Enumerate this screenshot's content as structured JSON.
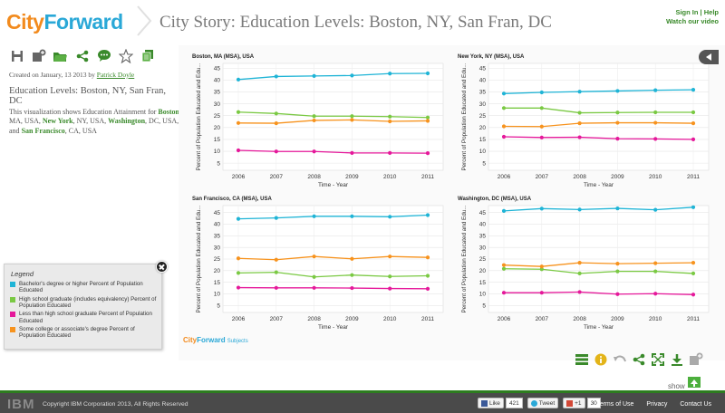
{
  "header": {
    "logo_city": "City",
    "logo_forward": "Forward",
    "title": "City Story:  Education Levels: Boston, NY, San Fran, DC",
    "sign_in": "Sign In",
    "separator": "|",
    "help": "Help",
    "watch_video": "Watch our video"
  },
  "toolbar": {
    "icons": [
      "save-icon",
      "add-icon",
      "open-folder-icon",
      "share-icon",
      "comment-icon",
      "favorite-star-icon",
      "copy-icon"
    ]
  },
  "story": {
    "created_prefix": "Created on January, 13 2013 by",
    "author": "Patrick Doyle",
    "title": "Education Levels: Boston, NY, San Fran, DC",
    "desc_intro": "This visualization shows Education Attainment for",
    "boston": "Boston",
    "boston_rest": ", MA, USA,",
    "newyork": "New York",
    "newyork_rest": ", NY, USA,",
    "washington": "Washington",
    "washington_rest": ", DC, USA, and",
    "sanfran": "San Francisco",
    "sanfran_rest": ", CA, USA"
  },
  "colors": {
    "bachelor": "#1fb4d6",
    "highschool": "#7ac943",
    "lessthan": "#e5189a",
    "somecollege": "#f7931e",
    "green_text": "#3a8a2b"
  },
  "chart_data": [
    {
      "type": "line",
      "title": "Boston, MA (MSA), USA",
      "xlabel": "Time - Year",
      "ylabel": "Percent of Population Educated and Edu...",
      "x": [
        2006,
        2007,
        2008,
        2009,
        2010,
        2011
      ],
      "yticks": [
        5,
        10,
        15,
        20,
        25,
        30,
        35,
        40,
        45
      ],
      "ylim": [
        2,
        47
      ],
      "grid": true,
      "series": [
        {
          "name": "Bachelor's degree or higher Percent of Population Educated",
          "color": "#1fb4d6",
          "values": [
            40.2,
            41.5,
            41.7,
            41.9,
            42.7,
            42.8
          ]
        },
        {
          "name": "High school graduate (includes equivalency) Percent of Population Educated",
          "color": "#7ac943",
          "values": [
            26.5,
            25.9,
            24.8,
            24.8,
            24.6,
            24.2
          ]
        },
        {
          "name": "Some college or associate's degree Percent of Population Educated",
          "color": "#f7931e",
          "values": [
            21.9,
            21.8,
            23.0,
            23.2,
            22.6,
            22.8
          ]
        },
        {
          "name": "Less than high school graduate Percent of Population Educated",
          "color": "#e5189a",
          "values": [
            10.4,
            9.9,
            9.9,
            9.3,
            9.3,
            9.2
          ]
        }
      ]
    },
    {
      "type": "line",
      "title": "New York, NY (MSA), USA",
      "xlabel": "Time - Year",
      "ylabel": "Percent of Population Educated and Edu...",
      "x": [
        2006,
        2007,
        2008,
        2009,
        2010,
        2011
      ],
      "yticks": [
        5,
        10,
        15,
        20,
        25,
        30,
        35,
        40,
        45
      ],
      "ylim": [
        2,
        47
      ],
      "grid": true,
      "series": [
        {
          "name": "Bachelor's degree or higher Percent of Population Educated",
          "color": "#1fb4d6",
          "values": [
            34.3,
            34.8,
            35.1,
            35.4,
            35.7,
            35.9
          ]
        },
        {
          "name": "High school graduate (includes equivalency) Percent of Population Educated",
          "color": "#7ac943",
          "values": [
            28.2,
            28.2,
            26.2,
            26.3,
            26.4,
            26.4
          ]
        },
        {
          "name": "Some college or associate's degree Percent of Population Educated",
          "color": "#f7931e",
          "values": [
            20.5,
            20.4,
            21.8,
            22.0,
            22.0,
            21.8
          ]
        },
        {
          "name": "Less than high school graduate Percent of Population Educated",
          "color": "#e5189a",
          "values": [
            16.1,
            15.8,
            15.9,
            15.3,
            15.2,
            15.0
          ]
        }
      ]
    },
    {
      "type": "line",
      "title": "San Francisco, CA (MSA), USA",
      "xlabel": "Time - Year",
      "ylabel": "Percent of Population Educated and Edu...",
      "x": [
        2006,
        2007,
        2008,
        2009,
        2010,
        2011
      ],
      "yticks": [
        5,
        10,
        15,
        20,
        25,
        30,
        35,
        40,
        45
      ],
      "ylim": [
        2,
        48
      ],
      "grid": true,
      "series": [
        {
          "name": "Bachelor's degree or higher Percent of Population Educated",
          "color": "#1fb4d6",
          "values": [
            42.3,
            42.7,
            43.4,
            43.4,
            43.2,
            43.9
          ]
        },
        {
          "name": "High school graduate (includes equivalency) Percent of Population Educated",
          "color": "#7ac943",
          "values": [
            19.0,
            19.3,
            17.3,
            18.1,
            17.5,
            17.8
          ]
        },
        {
          "name": "Some college or associate's degree Percent of Population Educated",
          "color": "#f7931e",
          "values": [
            25.3,
            24.7,
            26.1,
            25.1,
            26.1,
            25.7
          ]
        },
        {
          "name": "Less than high school graduate Percent of Population Educated",
          "color": "#e5189a",
          "values": [
            12.7,
            12.6,
            12.6,
            12.5,
            12.3,
            12.2
          ]
        }
      ]
    },
    {
      "type": "line",
      "title": "Washington, DC (MSA), USA",
      "xlabel": "Time - Year",
      "ylabel": "Percent of Population Educated and Edu...",
      "x": [
        2006,
        2007,
        2008,
        2009,
        2010,
        2011
      ],
      "yticks": [
        5,
        10,
        15,
        20,
        25,
        30,
        35,
        40,
        45
      ],
      "ylim": [
        2,
        48
      ],
      "grid": true,
      "series": [
        {
          "name": "Bachelor's degree or higher Percent of Population Educated",
          "color": "#1fb4d6",
          "values": [
            45.7,
            46.7,
            46.3,
            46.8,
            46.2,
            47.3
          ]
        },
        {
          "name": "High school graduate (includes equivalency) Percent of Population Educated",
          "color": "#7ac943",
          "values": [
            20.8,
            20.6,
            18.8,
            19.7,
            19.7,
            18.8
          ]
        },
        {
          "name": "Some college or associate's degree Percent of Population Educated",
          "color": "#f7931e",
          "values": [
            22.4,
            21.8,
            23.4,
            23.0,
            23.2,
            23.4
          ]
        },
        {
          "name": "Less than high school graduate Percent of Population Educated",
          "color": "#e5189a",
          "values": [
            10.5,
            10.5,
            10.8,
            9.9,
            10.1,
            9.7
          ]
        }
      ]
    }
  ],
  "legend": {
    "title": "Legend",
    "items": [
      {
        "label": "Bachelor's degree or higher Percent of Population Educated",
        "color": "#1fb4d6"
      },
      {
        "label": "High school graduate (includes equivalency) Percent of Population Educated",
        "color": "#7ac943"
      },
      {
        "label": "Less than high school graduate Percent of Population Educated",
        "color": "#e5189a"
      },
      {
        "label": "Some college or associate's degree Percent of Population Educated",
        "color": "#f7931e"
      }
    ]
  },
  "subjects_badge": {
    "city": "City",
    "forward": "Forward",
    "label": "Subjects"
  },
  "bottom_tools": {
    "icons": [
      "table-view-icon",
      "info-icon",
      "undo-icon",
      "share-icon",
      "fullscreen-icon",
      "download-icon",
      "add-icon"
    ],
    "show_label": "show"
  },
  "footer": {
    "ibm": "IBM",
    "copyright": "Copyright IBM Corporation 2013, All Rights Reserved",
    "like_label": "Like",
    "like_count": "421",
    "tweet_label": "Tweet",
    "plus_label": "+1",
    "plus_count": "30",
    "terms": "Terms of Use",
    "privacy": "Privacy",
    "contact": "Contact Us"
  }
}
